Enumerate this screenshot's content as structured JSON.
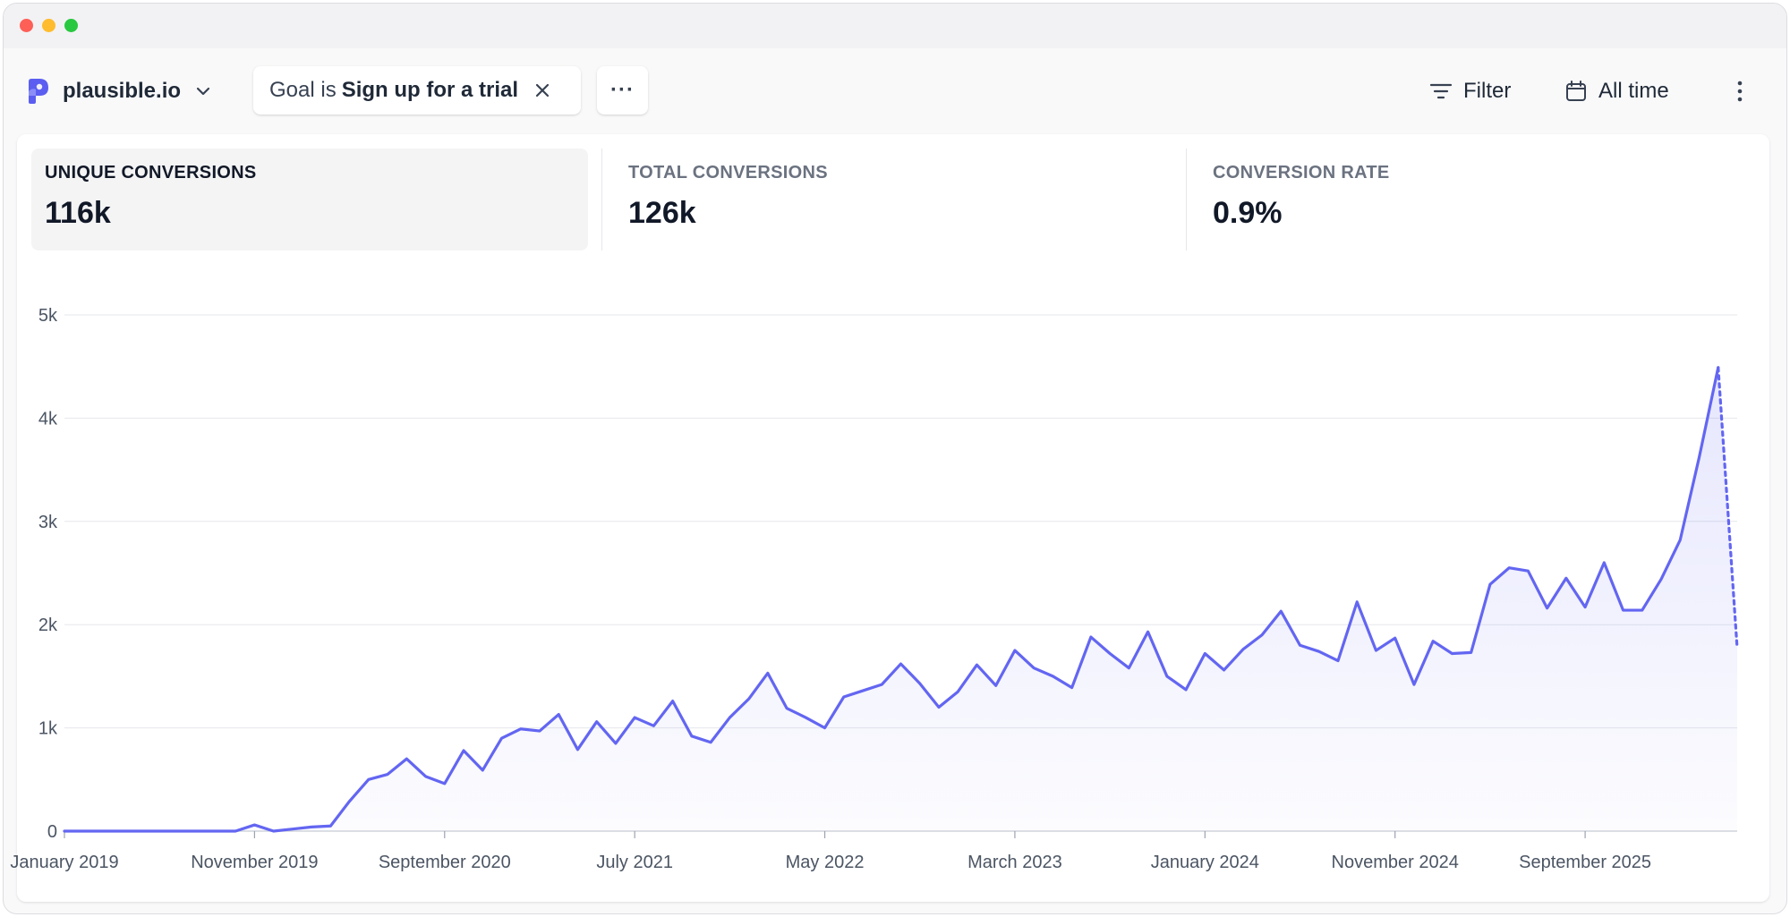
{
  "site": {
    "name": "plausible.io",
    "logo_icon": "plausible-logo-icon",
    "accent": "#6366f1"
  },
  "filter_pill": {
    "prefix": "Goal is",
    "value": "Sign up for a trial"
  },
  "more_label": "···",
  "toolbar": {
    "filter_label": "Filter",
    "date_label": "All time"
  },
  "stats": [
    {
      "label": "UNIQUE CONVERSIONS",
      "value": "116k",
      "active": true
    },
    {
      "label": "TOTAL CONVERSIONS",
      "value": "126k",
      "active": false
    },
    {
      "label": "CONVERSION RATE",
      "value": "0.9%",
      "active": false
    }
  ],
  "chart_data": {
    "type": "area",
    "series": [
      {
        "color": "#6366f1"
      }
    ],
    "y_ticks": [
      "0",
      "1k",
      "2k",
      "3k",
      "4k",
      "5k"
    ],
    "ylim": [
      0,
      5000
    ],
    "x_tick_labels": [
      "January 2019",
      "November 2019",
      "September 2020",
      "July 2021",
      "May 2022",
      "March 2023",
      "January 2024",
      "November 2024",
      "September 2025"
    ],
    "x_tick_index": [
      0,
      10,
      20,
      30,
      40,
      50,
      60,
      70,
      80
    ],
    "values": [
      0,
      0,
      0,
      0,
      0,
      0,
      0,
      0,
      0,
      0,
      60,
      0,
      20,
      40,
      50,
      290,
      500,
      550,
      700,
      530,
      460,
      780,
      590,
      900,
      990,
      970,
      1130,
      790,
      1060,
      850,
      1100,
      1020,
      1260,
      920,
      860,
      1100,
      1280,
      1530,
      1190,
      1100,
      1000,
      1300,
      1360,
      1420,
      1620,
      1430,
      1200,
      1350,
      1610,
      1410,
      1750,
      1580,
      1500,
      1390,
      1880,
      1720,
      1580,
      1930,
      1500,
      1370,
      1720,
      1560,
      1760,
      1900,
      2130,
      1800,
      1740,
      1650,
      2220,
      1750,
      1870,
      1420,
      1840,
      1720,
      1730,
      2390,
      2550,
      2520,
      2160,
      2450,
      2170,
      2600,
      2140,
      2140,
      2440,
      2820,
      3620,
      4490,
      1770
    ],
    "partial_last_point": true,
    "grid": true
  }
}
